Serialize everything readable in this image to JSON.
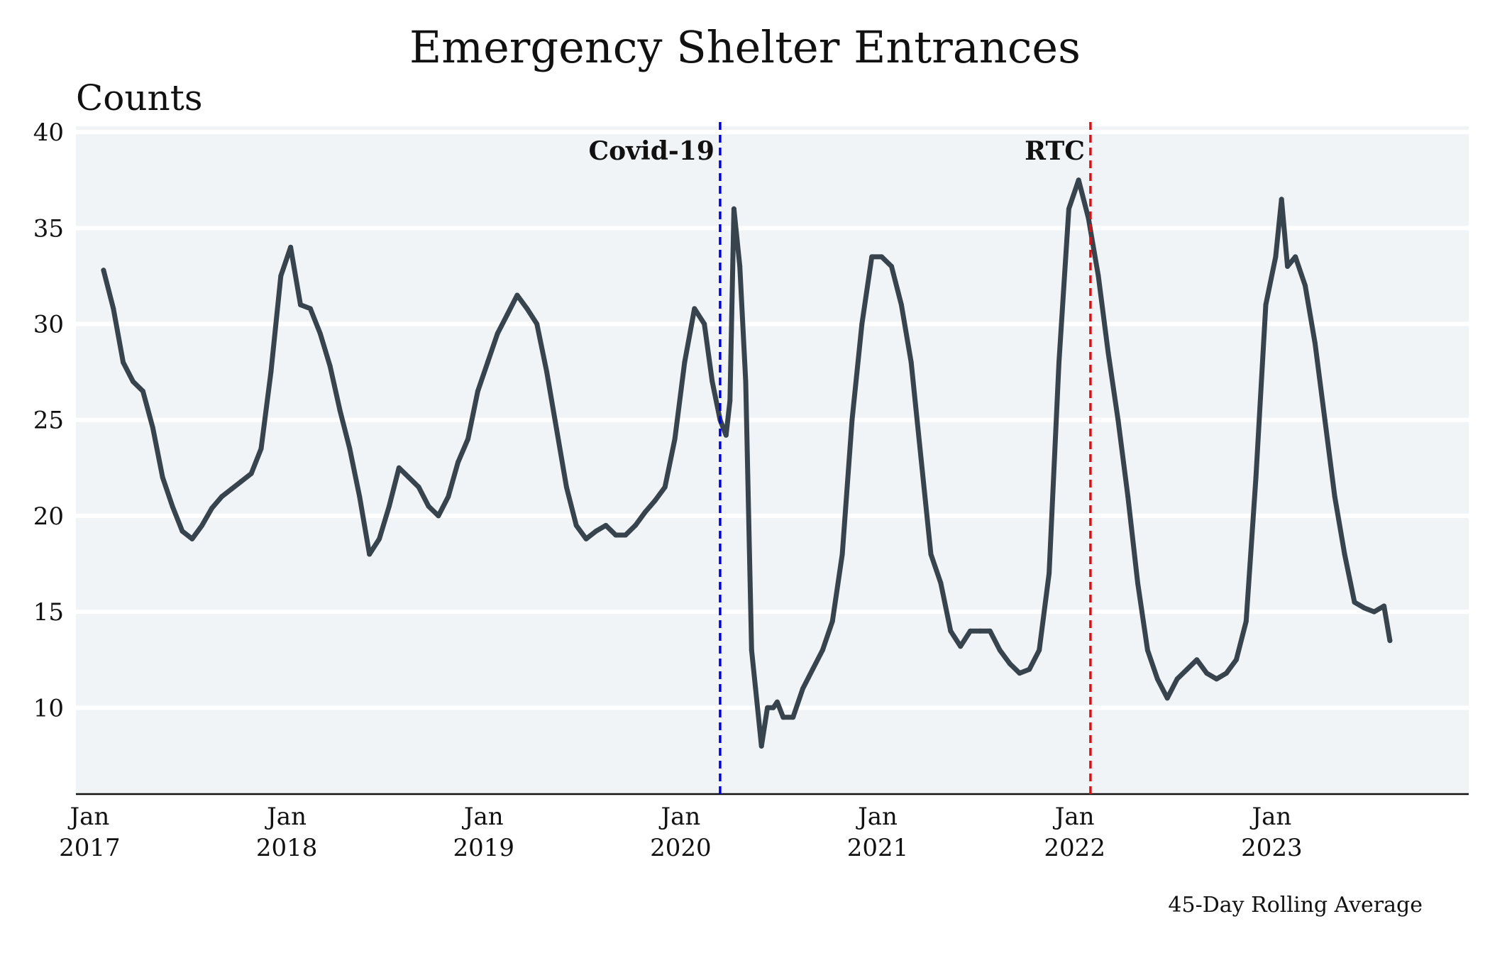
{
  "chart_data": {
    "type": "line",
    "title": "Emergency Shelter Entrances",
    "ylabel": "Counts",
    "xlabel": "",
    "caption": "45-Day Rolling Average",
    "ylim": [
      5.5,
      40.3
    ],
    "xlim": [
      2016.93,
      2024.0
    ],
    "y_ticks": [
      10,
      15,
      20,
      25,
      30,
      35,
      40
    ],
    "x_ticks": [
      {
        "value": 2017.0,
        "line1": "Jan",
        "line2": "2017"
      },
      {
        "value": 2018.0,
        "line1": "Jan",
        "line2": "2018"
      },
      {
        "value": 2019.0,
        "line1": "Jan",
        "line2": "2019"
      },
      {
        "value": 2020.0,
        "line1": "Jan",
        "line2": "2020"
      },
      {
        "value": 2021.0,
        "line1": "Jan",
        "line2": "2021"
      },
      {
        "value": 2022.0,
        "line1": "Jan",
        "line2": "2022"
      },
      {
        "value": 2023.0,
        "line1": "Jan",
        "line2": "2023"
      }
    ],
    "annotations": [
      {
        "label": "Covid-19",
        "x": 2020.2,
        "color": "#0000dd",
        "label_side": "left"
      },
      {
        "label": "RTC",
        "x": 2022.08,
        "color": "#dd1111",
        "label_side": "left"
      }
    ],
    "series": [
      {
        "name": "45-Day Rolling Average",
        "color": "#37434d",
        "x": [
          2017.07,
          2017.12,
          2017.17,
          2017.22,
          2017.27,
          2017.32,
          2017.37,
          2017.42,
          2017.47,
          2017.52,
          2017.57,
          2017.62,
          2017.67,
          2017.72,
          2017.77,
          2017.82,
          2017.87,
          2017.92,
          2017.97,
          2018.02,
          2018.07,
          2018.12,
          2018.17,
          2018.22,
          2018.27,
          2018.32,
          2018.37,
          2018.42,
          2018.47,
          2018.52,
          2018.57,
          2018.62,
          2018.67,
          2018.72,
          2018.77,
          2018.82,
          2018.87,
          2018.92,
          2018.97,
          2019.02,
          2019.07,
          2019.12,
          2019.17,
          2019.22,
          2019.27,
          2019.32,
          2019.37,
          2019.42,
          2019.47,
          2019.52,
          2019.57,
          2019.62,
          2019.67,
          2019.72,
          2019.77,
          2019.82,
          2019.87,
          2019.92,
          2019.97,
          2020.02,
          2020.07,
          2020.12,
          2020.16,
          2020.2,
          2020.23,
          2020.25,
          2020.27,
          2020.3,
          2020.33,
          2020.36,
          2020.38,
          2020.41,
          2020.44,
          2020.47,
          2020.49,
          2020.52,
          2020.57,
          2020.62,
          2020.67,
          2020.72,
          2020.77,
          2020.82,
          2020.87,
          2020.92,
          2020.97,
          2021.02,
          2021.07,
          2021.12,
          2021.17,
          2021.22,
          2021.27,
          2021.32,
          2021.37,
          2021.42,
          2021.47,
          2021.52,
          2021.57,
          2021.62,
          2021.67,
          2021.72,
          2021.77,
          2021.82,
          2021.87,
          2021.92,
          2021.97,
          2022.02,
          2022.07,
          2022.12,
          2022.17,
          2022.22,
          2022.27,
          2022.32,
          2022.37,
          2022.42,
          2022.47,
          2022.52,
          2022.57,
          2022.62,
          2022.67,
          2022.72,
          2022.77,
          2022.82,
          2022.87,
          2022.92,
          2022.97,
          2023.02,
          2023.05,
          2023.08,
          2023.12,
          2023.17,
          2023.22,
          2023.27,
          2023.32,
          2023.37,
          2023.42,
          2023.47,
          2023.52,
          2023.57,
          2023.6
        ],
        "y": [
          32.8,
          30.8,
          28.0,
          27.0,
          26.5,
          24.6,
          22.0,
          20.5,
          19.2,
          18.8,
          19.5,
          20.4,
          21.0,
          21.4,
          21.8,
          22.2,
          23.5,
          27.5,
          32.5,
          34.0,
          31.0,
          30.8,
          29.5,
          27.8,
          25.5,
          23.5,
          21.0,
          18.0,
          18.8,
          20.5,
          22.5,
          22.0,
          21.5,
          20.5,
          20.0,
          21.0,
          22.8,
          24.0,
          26.5,
          28.0,
          29.5,
          30.5,
          31.5,
          30.8,
          30.0,
          27.5,
          24.5,
          21.5,
          19.5,
          18.8,
          19.2,
          19.5,
          19.0,
          19.0,
          19.5,
          20.2,
          20.8,
          21.5,
          24.0,
          28.0,
          30.8,
          30.0,
          27.0,
          25.0,
          24.2,
          26.0,
          36.0,
          33.0,
          27.0,
          13.0,
          11.0,
          8.0,
          10.0,
          10.0,
          10.3,
          9.5,
          9.5,
          11.0,
          12.0,
          13.0,
          14.5,
          18.0,
          25.0,
          30.0,
          33.5,
          33.5,
          33.0,
          31.0,
          28.0,
          23.0,
          18.0,
          16.5,
          14.0,
          13.2,
          14.0,
          14.0,
          14.0,
          13.0,
          12.3,
          11.8,
          12.0,
          13.0,
          17.0,
          28.0,
          36.0,
          37.5,
          35.5,
          32.5,
          28.5,
          25.0,
          21.0,
          16.5,
          13.0,
          11.5,
          10.5,
          11.5,
          12.0,
          12.5,
          11.8,
          11.5,
          11.8,
          12.5,
          14.5,
          22.0,
          31.0,
          33.5,
          36.5,
          33.0,
          33.5,
          32.0,
          29.0,
          25.0,
          21.0,
          18.0,
          15.5,
          15.2,
          15.0,
          15.3,
          13.5
        ]
      }
    ]
  }
}
